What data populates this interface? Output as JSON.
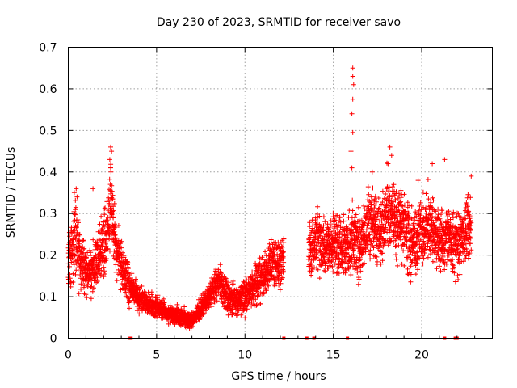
{
  "chart_data": {
    "type": "scatter",
    "title": "Day 230 of 2023, SRMTID for receiver savo",
    "xlabel": "GPS time / hours",
    "ylabel": "SRMTID / TECUs",
    "xlim": [
      0,
      24
    ],
    "ylim": [
      0,
      0.7
    ],
    "x_ticks": [
      0,
      5,
      10,
      15,
      20
    ],
    "y_ticks": [
      0,
      0.1,
      0.2,
      0.3,
      0.4,
      0.5,
      0.6,
      0.7
    ],
    "x_tick_labels": [
      "0",
      "5",
      "10",
      "15",
      "20"
    ],
    "y_tick_labels": [
      "0",
      "0.1",
      "0.2",
      "0.3",
      "0.4",
      "0.5",
      "0.6",
      "0.7"
    ],
    "grid": true,
    "marker": "+",
    "color": "#ff0000",
    "series": [
      {
        "name": "SRMTID",
        "trend": [
          {
            "x": 0.0,
            "y": 0.17,
            "spread": 0.06
          },
          {
            "x": 0.4,
            "y": 0.25,
            "spread": 0.08
          },
          {
            "x": 0.8,
            "y": 0.17,
            "spread": 0.06
          },
          {
            "x": 1.3,
            "y": 0.15,
            "spread": 0.05
          },
          {
            "x": 1.7,
            "y": 0.2,
            "spread": 0.06
          },
          {
            "x": 2.2,
            "y": 0.24,
            "spread": 0.07
          },
          {
            "x": 2.4,
            "y": 0.33,
            "spread": 0.08
          },
          {
            "x": 2.7,
            "y": 0.22,
            "spread": 0.06
          },
          {
            "x": 3.0,
            "y": 0.18,
            "spread": 0.05
          },
          {
            "x": 3.5,
            "y": 0.12,
            "spread": 0.035
          },
          {
            "x": 4.0,
            "y": 0.1,
            "spread": 0.03
          },
          {
            "x": 4.5,
            "y": 0.08,
            "spread": 0.025
          },
          {
            "x": 5.0,
            "y": 0.075,
            "spread": 0.025
          },
          {
            "x": 5.5,
            "y": 0.065,
            "spread": 0.02
          },
          {
            "x": 6.0,
            "y": 0.055,
            "spread": 0.02
          },
          {
            "x": 6.5,
            "y": 0.05,
            "spread": 0.02
          },
          {
            "x": 7.0,
            "y": 0.045,
            "spread": 0.015
          },
          {
            "x": 7.5,
            "y": 0.07,
            "spread": 0.02
          },
          {
            "x": 8.0,
            "y": 0.1,
            "spread": 0.03
          },
          {
            "x": 8.5,
            "y": 0.14,
            "spread": 0.035
          },
          {
            "x": 9.0,
            "y": 0.1,
            "spread": 0.035
          },
          {
            "x": 9.5,
            "y": 0.09,
            "spread": 0.035
          },
          {
            "x": 10.0,
            "y": 0.1,
            "spread": 0.04
          },
          {
            "x": 10.5,
            "y": 0.13,
            "spread": 0.04
          },
          {
            "x": 11.0,
            "y": 0.15,
            "spread": 0.045
          },
          {
            "x": 11.5,
            "y": 0.18,
            "spread": 0.05
          },
          {
            "x": 12.0,
            "y": 0.18,
            "spread": 0.05
          },
          {
            "x": 12.2,
            "y": 0.22,
            "spread": 0.05
          }
        ],
        "segments": [
          [
            0.0,
            12.2
          ],
          [
            13.6,
            22.8
          ]
        ],
        "trend_2": [
          {
            "x": 13.6,
            "y": 0.2,
            "spread": 0.05
          },
          {
            "x": 14.0,
            "y": 0.24,
            "spread": 0.06
          },
          {
            "x": 14.5,
            "y": 0.21,
            "spread": 0.06
          },
          {
            "x": 15.0,
            "y": 0.23,
            "spread": 0.06
          },
          {
            "x": 15.5,
            "y": 0.22,
            "spread": 0.06
          },
          {
            "x": 16.0,
            "y": 0.24,
            "spread": 0.07
          },
          {
            "x": 16.5,
            "y": 0.22,
            "spread": 0.07
          },
          {
            "x": 17.0,
            "y": 0.27,
            "spread": 0.07
          },
          {
            "x": 17.5,
            "y": 0.26,
            "spread": 0.07
          },
          {
            "x": 18.0,
            "y": 0.3,
            "spread": 0.08
          },
          {
            "x": 18.5,
            "y": 0.28,
            "spread": 0.08
          },
          {
            "x": 19.0,
            "y": 0.27,
            "spread": 0.08
          },
          {
            "x": 19.5,
            "y": 0.22,
            "spread": 0.07
          },
          {
            "x": 20.0,
            "y": 0.25,
            "spread": 0.07
          },
          {
            "x": 20.5,
            "y": 0.28,
            "spread": 0.08
          },
          {
            "x": 21.0,
            "y": 0.23,
            "spread": 0.07
          },
          {
            "x": 21.5,
            "y": 0.24,
            "spread": 0.06
          },
          {
            "x": 22.0,
            "y": 0.23,
            "spread": 0.07
          },
          {
            "x": 22.5,
            "y": 0.25,
            "spread": 0.07
          },
          {
            "x": 22.8,
            "y": 0.26,
            "spread": 0.07
          }
        ],
        "peaks": [
          {
            "x": 2.4,
            "y": 0.46
          },
          {
            "x": 2.45,
            "y": 0.45
          },
          {
            "x": 2.35,
            "y": 0.43
          },
          {
            "x": 2.4,
            "y": 0.41
          },
          {
            "x": 1.4,
            "y": 0.36
          },
          {
            "x": 0.45,
            "y": 0.36
          },
          {
            "x": 0.5,
            "y": 0.34
          },
          {
            "x": 16.1,
            "y": 0.65
          },
          {
            "x": 16.1,
            "y": 0.63
          },
          {
            "x": 16.15,
            "y": 0.61
          },
          {
            "x": 16.1,
            "y": 0.575
          },
          {
            "x": 16.05,
            "y": 0.54
          },
          {
            "x": 16.1,
            "y": 0.495
          },
          {
            "x": 16.0,
            "y": 0.45
          },
          {
            "x": 16.05,
            "y": 0.41
          },
          {
            "x": 18.2,
            "y": 0.46
          },
          {
            "x": 18.3,
            "y": 0.44
          },
          {
            "x": 18.1,
            "y": 0.42
          },
          {
            "x": 20.6,
            "y": 0.42
          },
          {
            "x": 21.3,
            "y": 0.43
          },
          {
            "x": 22.8,
            "y": 0.39
          },
          {
            "x": 17.2,
            "y": 0.4
          },
          {
            "x": 19.8,
            "y": 0.38
          }
        ],
        "zero_markers": [
          3.5,
          3.55,
          12.2,
          13.5,
          13.9,
          15.8,
          21.3,
          21.9,
          22.0
        ]
      }
    ]
  }
}
